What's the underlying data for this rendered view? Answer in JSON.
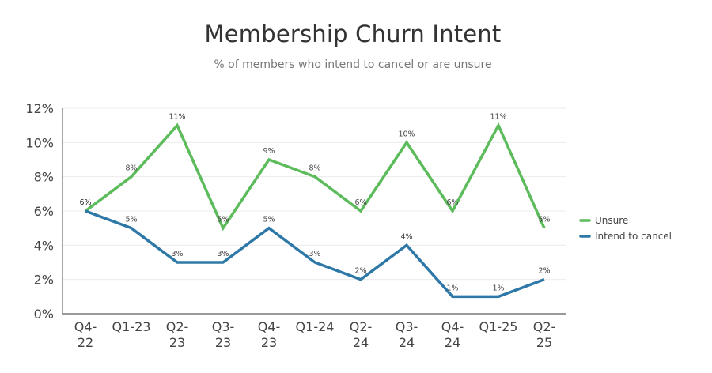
{
  "header": {
    "title": "Membership Churn Intent",
    "subtitle": "% of members who intend to cancel or are unsure"
  },
  "chart_data": {
    "type": "line",
    "title": "Membership Churn Intent",
    "subtitle": "% of members who intend to cancel or are unsure",
    "xlabel": "",
    "ylabel": "",
    "ylim": [
      0,
      12
    ],
    "yticks": [
      "0%",
      "2%",
      "4%",
      "6%",
      "8%",
      "10%",
      "12%"
    ],
    "grid": true,
    "legend_position": "right",
    "categories": [
      "Q4-22",
      "Q1-23",
      "Q2-23",
      "Q3-23",
      "Q4-23",
      "Q1-24",
      "Q2-24",
      "Q3-24",
      "Q4-24",
      "Q1-25",
      "Q2-25"
    ],
    "category_lines": [
      [
        "Q4-",
        "22"
      ],
      [
        "Q1-23"
      ],
      [
        "Q2-",
        "23"
      ],
      [
        "Q3-",
        "23"
      ],
      [
        "Q4-",
        "23"
      ],
      [
        "Q1-24"
      ],
      [
        "Q2-",
        "24"
      ],
      [
        "Q3-",
        "24"
      ],
      [
        "Q4-",
        "24"
      ],
      [
        "Q1-25"
      ],
      [
        "Q2-",
        "25"
      ]
    ],
    "series": [
      {
        "name": "Unsure",
        "color": "#5cbb5a",
        "values": [
          6,
          8,
          11,
          5,
          9,
          8,
          6,
          10,
          6,
          11,
          5
        ]
      },
      {
        "name": "Intend to cancel",
        "color": "#2e78a8",
        "values": [
          6,
          5,
          3,
          3,
          5,
          3,
          2,
          4,
          1,
          1,
          2
        ]
      }
    ]
  },
  "legend": {
    "items": [
      {
        "label": "Unsure",
        "color": "#5cbb5a"
      },
      {
        "label": "Intend to cancel",
        "color": "#2e78a8"
      }
    ]
  }
}
